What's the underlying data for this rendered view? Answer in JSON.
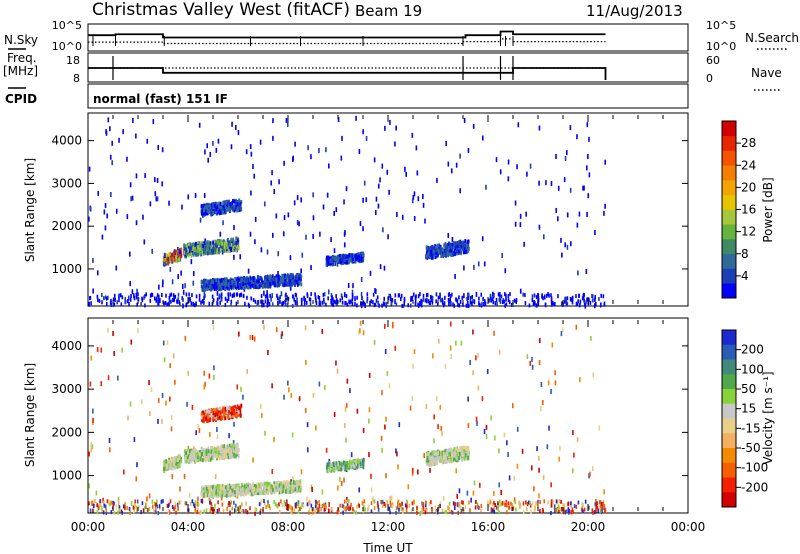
{
  "header": {
    "station": "Christmas Valley West (fitACF)",
    "beam": "Beam 19",
    "date": "11/Aug/2013"
  },
  "left_labels": {
    "nsky": "N.Sky",
    "freq_line1": "Freq.",
    "freq_line2": "[MHz]",
    "cpid": "CPID"
  },
  "right_labels": {
    "nsearch": "N.Search",
    "nave": "Nave"
  },
  "cpid_text": "normal (fast) 151 IF",
  "colors": {
    "trace": "#000000",
    "frame": "#000000"
  },
  "chart_data": [
    {
      "type": "line",
      "id": "noise",
      "left_axis_ticks": [
        "10^5",
        "10^0"
      ],
      "right_axis_ticks": [
        "10^5",
        "10^0"
      ],
      "series": [
        {
          "name": "N.Sky",
          "style": "solid",
          "x": [
            0.0,
            0.2,
            1.0,
            1.1,
            3.0,
            3.05,
            6.5,
            8.5,
            11.0,
            15.0,
            15.1,
            16.5,
            16.7,
            17.0,
            20.7
          ],
          "y": [
            3.0,
            3.0,
            3.0,
            3.2,
            2.5,
            2.5,
            2.5,
            2.5,
            2.5,
            2.5,
            3.0,
            3.8,
            3.8,
            3.2,
            3.2
          ]
        },
        {
          "name": "N.Search",
          "style": "dotted",
          "x": [
            0.0,
            3.0,
            6.5,
            11.0,
            15.0,
            16.5,
            17.0,
            20.7
          ],
          "y": [
            1.5,
            1.2,
            1.2,
            1.2,
            1.6,
            2.2,
            1.6,
            1.6
          ]
        }
      ]
    },
    {
      "type": "line",
      "id": "frequency",
      "left_axis_ticks": [
        "18",
        "8"
      ],
      "right_axis_ticks": [
        "60",
        "0"
      ],
      "series": [
        {
          "name": "Freq.",
          "style": "solid",
          "x": [
            0.0,
            1.0,
            3.0,
            15.0,
            17.0,
            20.7
          ],
          "y": [
            13.0,
            13.0,
            11.0,
            11.0,
            13.0,
            13.0
          ]
        },
        {
          "name": "Nave",
          "style": "dotted",
          "x": [
            0.0,
            20.7
          ],
          "y": [
            30,
            30
          ]
        }
      ]
    },
    {
      "type": "scatter",
      "id": "power",
      "ylabel": "Slant Range [km]",
      "ylim": [
        180,
        4600
      ],
      "xlim": [
        0,
        24
      ],
      "y_ticks": [
        "1000",
        "2000",
        "3000",
        "4000"
      ],
      "colorbar": {
        "label": "Power [dB]",
        "ticks": [
          "4",
          "8",
          "12",
          "16",
          "20",
          "24",
          "28"
        ],
        "colors": [
          "#0000ff",
          "#1c3fb4",
          "#2f6a9c",
          "#3e8a64",
          "#66b43c",
          "#a5c83a",
          "#e8c400",
          "#f4a400",
          "#f47f00",
          "#f45400",
          "#e82600",
          "#d20000"
        ]
      },
      "echo_regions": [
        {
          "x": [
            3.0,
            3.7
          ],
          "y": [
            1150,
            1500
          ],
          "level": "high"
        },
        {
          "x": [
            3.8,
            6.0
          ],
          "y": [
            1350,
            1750
          ],
          "level": "mid"
        },
        {
          "x": [
            4.5,
            6.1
          ],
          "y": [
            2300,
            2650
          ],
          "level": "low"
        },
        {
          "x": [
            4.5,
            8.5
          ],
          "y": [
            560,
            900
          ],
          "level": "low"
        },
        {
          "x": [
            9.5,
            11.0
          ],
          "y": [
            1150,
            1400
          ],
          "level": "low"
        },
        {
          "x": [
            13.5,
            15.2
          ],
          "y": [
            1300,
            1700
          ],
          "level": "low"
        }
      ]
    },
    {
      "type": "scatter",
      "id": "velocity",
      "ylabel": "Slant Range [km]",
      "xlabel": "Time UT",
      "ylim": [
        180,
        4600
      ],
      "xlim": [
        0,
        24
      ],
      "x_ticks": [
        "00:00",
        "04:00",
        "08:00",
        "12:00",
        "16:00",
        "20:00",
        "00:00"
      ],
      "y_ticks": [
        "1000",
        "2000",
        "3000",
        "4000"
      ],
      "colorbar": {
        "label": "Velocity [m s⁻¹]",
        "ticks": [
          "200",
          "100",
          "50",
          "15",
          "-15",
          "-50",
          "-100",
          "-200"
        ],
        "colors": [
          "#1a2ad0",
          "#2c5ab8",
          "#3f8a7a",
          "#4fa84a",
          "#88d23a",
          "#c8c8c8",
          "#e8d08a",
          "#f4b060",
          "#f48a00",
          "#f46000",
          "#f42000",
          "#d20000"
        ]
      },
      "echo_regions": [
        {
          "x": [
            3.0,
            3.7
          ],
          "y": [
            1150,
            1500
          ],
          "level": "gray"
        },
        {
          "x": [
            3.8,
            6.0
          ],
          "y": [
            1350,
            1750
          ],
          "level": "gray"
        },
        {
          "x": [
            4.5,
            6.1
          ],
          "y": [
            2300,
            2650
          ],
          "level": "red"
        },
        {
          "x": [
            4.5,
            8.5
          ],
          "y": [
            560,
            900
          ],
          "level": "gray"
        },
        {
          "x": [
            9.5,
            11.0
          ],
          "y": [
            1150,
            1400
          ],
          "level": "green"
        },
        {
          "x": [
            13.5,
            15.2
          ],
          "y": [
            1300,
            1700
          ],
          "level": "gray"
        }
      ]
    }
  ]
}
